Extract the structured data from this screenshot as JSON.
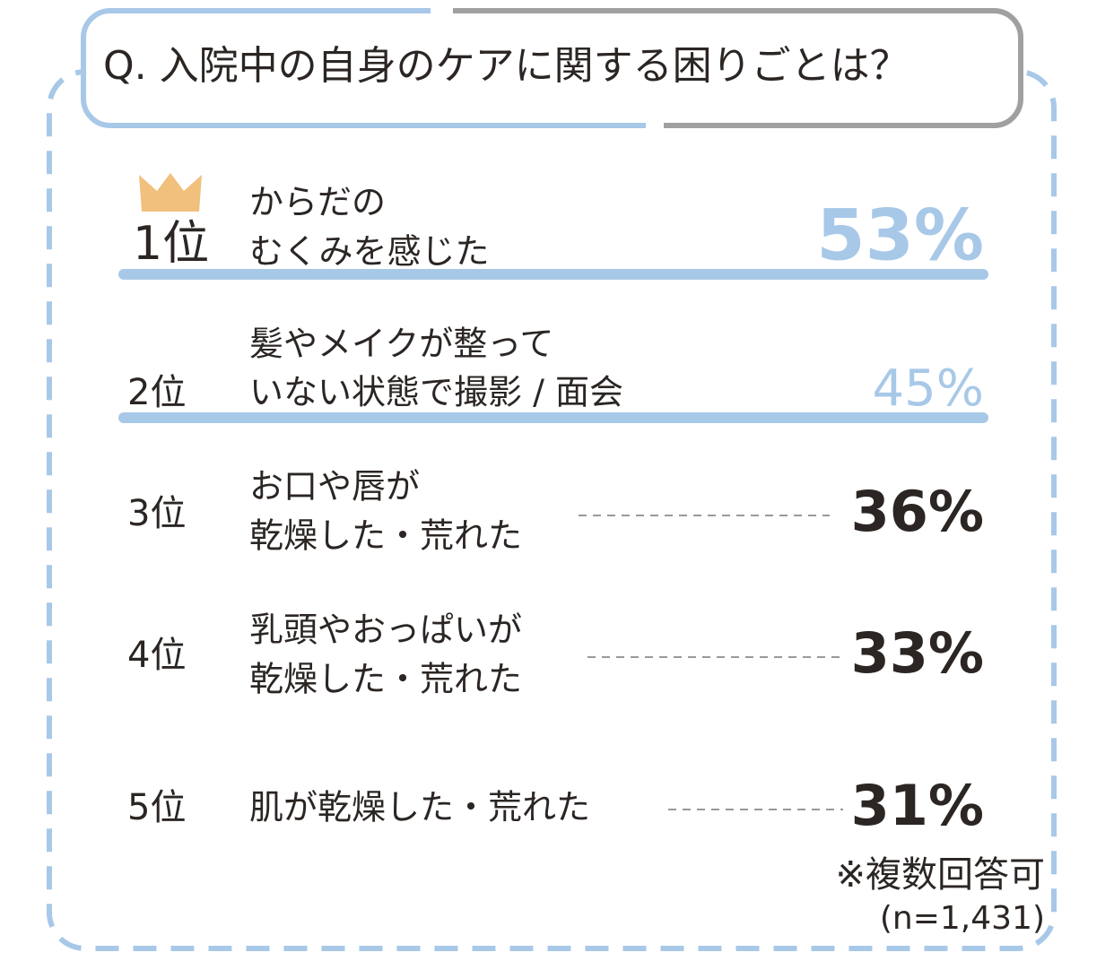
{
  "header": {
    "title": "Q. 入院中の自身のケアに関する困りごとは？"
  },
  "items": [
    {
      "rank": "1位",
      "lines": [
        "からだの",
        "むくみを感じた"
      ],
      "percent": "53%"
    },
    {
      "rank": "2位",
      "lines": [
        "髪やメイクが整って",
        "いない状態で撮影 / 面会"
      ],
      "percent": "45%"
    },
    {
      "rank": "3位",
      "lines": [
        "お口や唇が",
        "乾燥した・荒れた"
      ],
      "percent": "36%"
    },
    {
      "rank": "4位",
      "lines": [
        "乳頭やおっぱいが",
        "乾燥した・荒れた"
      ],
      "percent": "33%"
    },
    {
      "rank": "5位",
      "lines": [
        "肌が乾燥した・荒れた"
      ],
      "percent": "31%"
    }
  ],
  "footer": {
    "note": "※複数回答可",
    "sample": "(n=1,431)"
  }
}
